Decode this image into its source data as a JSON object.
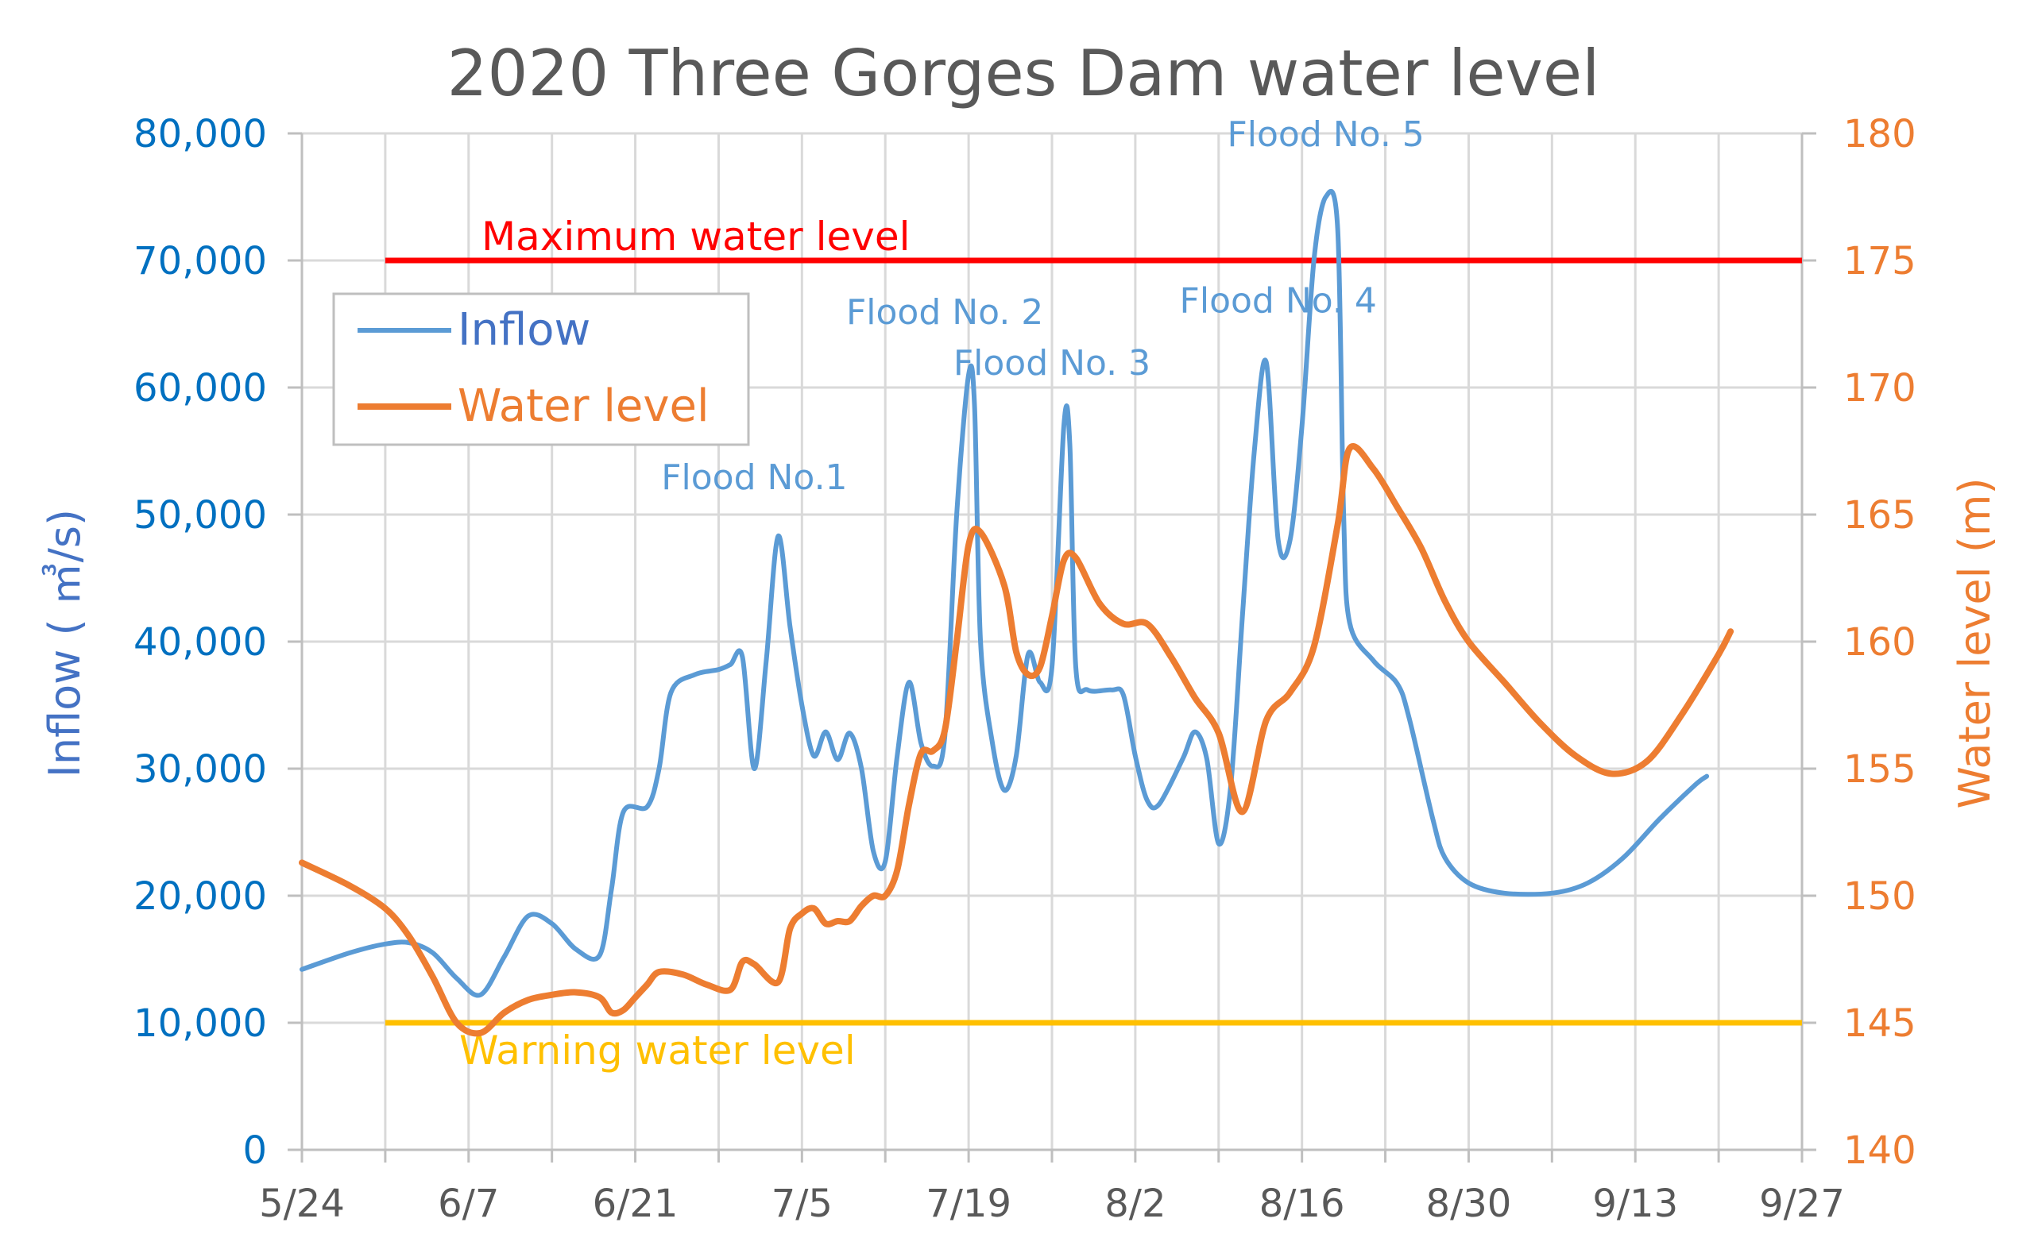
{
  "chart_data": {
    "type": "line",
    "title": "2020 Three Gorges Dam water level",
    "y_left": {
      "label": "Inflow ( ㎥/s)",
      "ylim": [
        0,
        80000
      ],
      "ticks": [
        "0",
        "10,000",
        "20,000",
        "30,000",
        "40,000",
        "50,000",
        "60,000",
        "70,000",
        "80,000"
      ]
    },
    "y_right": {
      "label": "Water level (m)",
      "ylim": [
        140,
        180
      ],
      "ticks": [
        "140",
        "145",
        "150",
        "155",
        "160",
        "165",
        "170",
        "175",
        "180"
      ]
    },
    "x_axis": {
      "start": "5/24",
      "end": "9/27",
      "tick_labels": [
        "5/24",
        "6/7",
        "6/21",
        "7/5",
        "7/19",
        "8/2",
        "8/16",
        "8/30",
        "9/13",
        "9/27"
      ]
    },
    "grid": true,
    "legend": {
      "position": "top-left",
      "entries": [
        "Inflow",
        "Water level"
      ]
    },
    "colors": {
      "inflow": "#5b9bd5",
      "water_level": "#ed7d31",
      "max_line": "#ff0000",
      "warn_line": "#ffc000",
      "grid": "#d9d9d9"
    },
    "reference_lines": [
      {
        "label": "Maximum water level",
        "value_m": 175,
        "from": "5/31",
        "to": "9/27"
      },
      {
        "label": "Warning water level",
        "value_m": 145,
        "from": "5/31",
        "to": "9/27"
      }
    ],
    "annotations": [
      {
        "text": "Flood No.1",
        "date": "7/1",
        "inflow": 52000
      },
      {
        "text": "Flood No. 2",
        "date": "7/17",
        "inflow": 65000
      },
      {
        "text": "Flood No. 3",
        "date": "7/26",
        "inflow": 61000
      },
      {
        "text": "Flood No. 4",
        "date": "8/14",
        "inflow": 65900
      },
      {
        "text": "Flood No. 5",
        "date": "8/18",
        "inflow": 79000
      }
    ],
    "series": [
      {
        "name": "Inflow",
        "axis": "left",
        "points": [
          [
            "5/24",
            14200
          ],
          [
            "5/28",
            15500
          ],
          [
            "5/31",
            16200
          ],
          [
            "6/2",
            16300
          ],
          [
            "6/4",
            15500
          ],
          [
            "6/6",
            13500
          ],
          [
            "6/8",
            12200
          ],
          [
            "6/10",
            15200
          ],
          [
            "6/12",
            18400
          ],
          [
            "6/14",
            17800
          ],
          [
            "6/16",
            15800
          ],
          [
            "6/18",
            15300
          ],
          [
            "6/19",
            20500
          ],
          [
            "6/20",
            26600
          ],
          [
            "6/22",
            27000
          ],
          [
            "6/23",
            30000
          ],
          [
            "6/24",
            36000
          ],
          [
            "6/26",
            37400
          ],
          [
            "6/28",
            37800
          ],
          [
            "6/29",
            38200
          ],
          [
            "6/30",
            38800
          ],
          [
            "7/1",
            30000
          ],
          [
            "7/2",
            38500
          ],
          [
            "7/3",
            48300
          ],
          [
            "7/4",
            41200
          ],
          [
            "7/5",
            35000
          ],
          [
            "7/6",
            31000
          ],
          [
            "7/7",
            32900
          ],
          [
            "7/8",
            30700
          ],
          [
            "7/9",
            32800
          ],
          [
            "7/10",
            30000
          ],
          [
            "7/11",
            23500
          ],
          [
            "7/12",
            22700
          ],
          [
            "7/13",
            31000
          ],
          [
            "7/14",
            36800
          ],
          [
            "7/15",
            32000
          ],
          [
            "7/16",
            30200
          ],
          [
            "7/17",
            32500
          ],
          [
            "7/18",
            50000
          ],
          [
            "7/19",
            61000
          ],
          [
            "7/19.5",
            58500
          ],
          [
            "7/20",
            40000
          ],
          [
            "7/21",
            32000
          ],
          [
            "7/22",
            28300
          ],
          [
            "7/23",
            31000
          ],
          [
            "7/24",
            39000
          ],
          [
            "7/25",
            36800
          ],
          [
            "7/26",
            38000
          ],
          [
            "7/27",
            57000
          ],
          [
            "7/27.5",
            55500
          ],
          [
            "7/28",
            38000
          ],
          [
            "7/29",
            36200
          ],
          [
            "7/31",
            36200
          ],
          [
            "8/1",
            35800
          ],
          [
            "8/2",
            31000
          ],
          [
            "8/3",
            27500
          ],
          [
            "8/4",
            27200
          ],
          [
            "8/6",
            30800
          ],
          [
            "8/7",
            32900
          ],
          [
            "8/8",
            30800
          ],
          [
            "8/9",
            24100
          ],
          [
            "8/10",
            28500
          ],
          [
            "8/11",
            42000
          ],
          [
            "8/12",
            55000
          ],
          [
            "8/13",
            62000
          ],
          [
            "8/14",
            48000
          ],
          [
            "8/15",
            48000
          ],
          [
            "8/16",
            57000
          ],
          [
            "8/17",
            70000
          ],
          [
            "8/18",
            75000
          ],
          [
            "8/19",
            72500
          ],
          [
            "8/19.5",
            50000
          ],
          [
            "8/20",
            41500
          ],
          [
            "8/22",
            38500
          ],
          [
            "8/24",
            36700
          ],
          [
            "8/25",
            34000
          ],
          [
            "8/27",
            26000
          ],
          [
            "8/28",
            23000
          ],
          [
            "8/30",
            21000
          ],
          [
            "9/2",
            20200
          ],
          [
            "9/6",
            20200
          ],
          [
            "9/9",
            21000
          ],
          [
            "9/12",
            23000
          ],
          [
            "9/15",
            26000
          ],
          [
            "9/18",
            28700
          ],
          [
            "9/19",
            29400
          ]
        ]
      },
      {
        "name": "Water level",
        "axis": "right",
        "points": [
          [
            "5/24",
            151.3
          ],
          [
            "5/28",
            150.4
          ],
          [
            "5/31",
            149.5
          ],
          [
            "6/2",
            148.4
          ],
          [
            "6/4",
            146.8
          ],
          [
            "6/6",
            145.0
          ],
          [
            "6/8",
            144.6
          ],
          [
            "6/10",
            145.4
          ],
          [
            "6/12",
            145.9
          ],
          [
            "6/14",
            146.1
          ],
          [
            "6/16",
            146.2
          ],
          [
            "6/18",
            146.0
          ],
          [
            "6/19",
            145.4
          ],
          [
            "6/20",
            145.5
          ],
          [
            "6/21",
            146.0
          ],
          [
            "6/22",
            146.5
          ],
          [
            "6/23",
            147.0
          ],
          [
            "6/25",
            146.9
          ],
          [
            "6/27",
            146.5
          ],
          [
            "6/29",
            146.3
          ],
          [
            "6/30",
            147.4
          ],
          [
            "7/1",
            147.3
          ],
          [
            "7/3",
            146.6
          ],
          [
            "7/4",
            148.7
          ],
          [
            "7/5",
            149.3
          ],
          [
            "7/6",
            149.5
          ],
          [
            "7/7",
            148.9
          ],
          [
            "7/8",
            149.0
          ],
          [
            "7/9",
            149.0
          ],
          [
            "7/10",
            149.6
          ],
          [
            "7/11",
            150.0
          ],
          [
            "7/12",
            150.0
          ],
          [
            "7/13",
            151.0
          ],
          [
            "7/14",
            153.6
          ],
          [
            "7/15",
            155.6
          ],
          [
            "7/16",
            155.7
          ],
          [
            "7/17",
            156.5
          ],
          [
            "7/18",
            160.0
          ],
          [
            "7/19",
            163.8
          ],
          [
            "7/20",
            164.3
          ],
          [
            "7/22",
            162.2
          ],
          [
            "7/23",
            159.6
          ],
          [
            "7/24",
            158.7
          ],
          [
            "7/25",
            159.0
          ],
          [
            "7/26",
            161.0
          ],
          [
            "7/27",
            163.2
          ],
          [
            "7/28",
            163.3
          ],
          [
            "7/30",
            161.5
          ],
          [
            "8/1",
            160.7
          ],
          [
            "8/3",
            160.7
          ],
          [
            "8/5",
            159.4
          ],
          [
            "8/7",
            157.8
          ],
          [
            "8/9",
            156.4
          ],
          [
            "8/11",
            153.3
          ],
          [
            "8/13",
            156.9
          ],
          [
            "8/15",
            158.0
          ],
          [
            "8/17",
            159.8
          ],
          [
            "8/19",
            164.6
          ],
          [
            "8/20",
            167.6
          ],
          [
            "8/22",
            166.8
          ],
          [
            "8/24",
            165.3
          ],
          [
            "8/26",
            163.7
          ],
          [
            "8/28",
            161.6
          ],
          [
            "8/30",
            160.0
          ],
          [
            "9/2",
            158.4
          ],
          [
            "9/5",
            156.8
          ],
          [
            "9/8",
            155.5
          ],
          [
            "9/11",
            154.8
          ],
          [
            "9/14",
            155.3
          ],
          [
            "9/17",
            157.2
          ],
          [
            "9/20",
            159.5
          ],
          [
            "9/21",
            160.4
          ]
        ]
      }
    ]
  }
}
